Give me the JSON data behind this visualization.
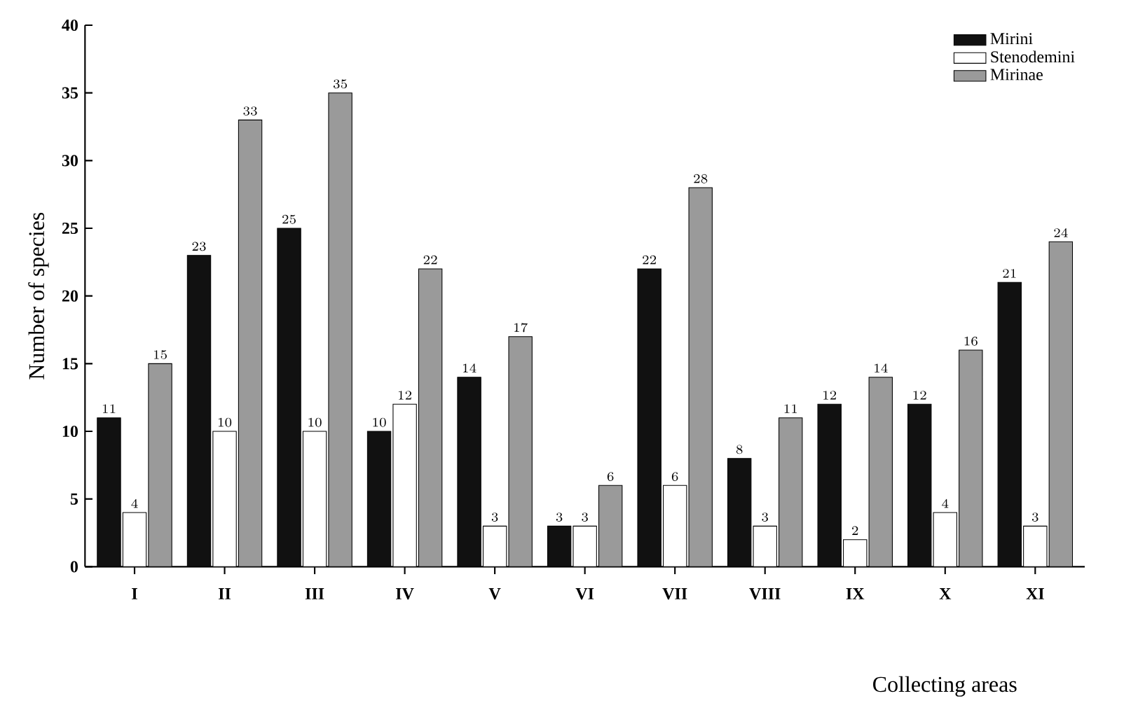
{
  "chart_data": {
    "type": "bar",
    "xlabel": "Collecting areas",
    "ylabel": "Number of species",
    "categories": [
      "I",
      "II",
      "III",
      "IV",
      "V",
      "VI",
      "VII",
      "VIII",
      "IX",
      "X",
      "XI"
    ],
    "series": [
      {
        "name": "Mirini",
        "color": "#111111",
        "values": [
          11,
          23,
          25,
          10,
          14,
          3,
          22,
          8,
          12,
          12,
          21
        ]
      },
      {
        "name": "Stenodemini",
        "color": "#ffffff",
        "values": [
          4,
          10,
          10,
          12,
          3,
          3,
          6,
          3,
          2,
          4,
          3
        ]
      },
      {
        "name": "Mirinae",
        "color": "#9a9a9a",
        "values": [
          15,
          33,
          35,
          22,
          17,
          6,
          28,
          11,
          14,
          16,
          24
        ]
      }
    ],
    "ylim": [
      0,
      40
    ],
    "yticks": [
      0,
      5,
      10,
      15,
      20,
      25,
      30,
      35,
      40
    ],
    "grid": false,
    "legend": "top right",
    "data_labels": true
  }
}
